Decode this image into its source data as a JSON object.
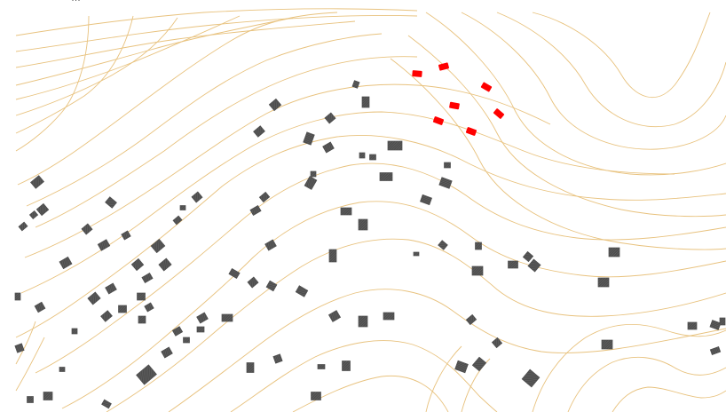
{
  "map": {
    "corner_label": "…",
    "contour_color": "#e8c27e",
    "building_fill": "#4d4d4d",
    "building_hatch": "#8a8a8a",
    "highlight_fill": "#ff0000",
    "background": "#ffffff"
  }
}
